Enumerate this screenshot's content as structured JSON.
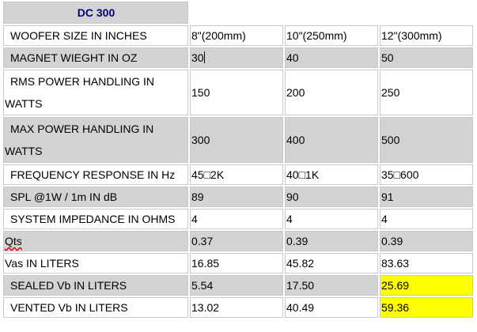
{
  "title": "DC 300",
  "highlight_color": "#ffff00",
  "header_color": "#000080",
  "rows": [
    {
      "label": "WOOFER SIZE IN INCHES",
      "values": [
        "8\"(200mm)",
        "10\"(250mm)",
        "12\"(300mm)"
      ]
    },
    {
      "label": "MAGNET WIEGHT IN OZ",
      "values": [
        "30",
        "40",
        "50"
      ]
    },
    {
      "label": "RMS POWER HANDLING IN WATTS",
      "values": [
        "150",
        "200",
        "250"
      ]
    },
    {
      "label": "MAX POWER HANDLING IN WATTS",
      "values": [
        "300",
        "400",
        "500"
      ]
    },
    {
      "label": "FREQUENCY RESPONSE IN Hz",
      "values": [
        "45□2K",
        "40□1K",
        "35□600"
      ]
    },
    {
      "label": "SPL @1W / 1m IN dB",
      "values": [
        "89",
        "90",
        "91"
      ]
    },
    {
      "label": "SYSTEM IMPEDANCE IN OHMS",
      "values": [
        "4",
        "4",
        "4"
      ]
    },
    {
      "label": "Qts",
      "values": [
        "0.37",
        "0.39",
        "0.39"
      ]
    },
    {
      "label": "Vas IN LITERS",
      "values": [
        "16.85",
        "45.82",
        "83.63"
      ]
    },
    {
      "label": "SEALED Vb IN LITERS",
      "values": [
        "5.54",
        "17.50",
        "25.69"
      ]
    },
    {
      "label": "VENTED Vb IN LITERS",
      "values": [
        "13.02",
        "40.49",
        "59.36"
      ]
    }
  ]
}
